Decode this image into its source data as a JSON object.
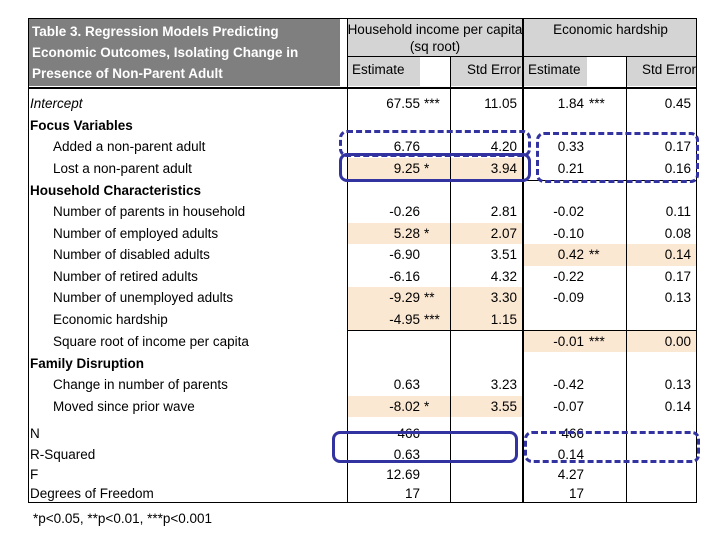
{
  "table": {
    "title": "Table 3.  Regression Models Predicting Economic Outcomes, Isolating Change in Presence of Non-Parent Adult",
    "col_groups": [
      {
        "label": "Household income per capita (sq root)"
      },
      {
        "label": "Economic hardship"
      }
    ],
    "sub_headers": {
      "estimate": "Estimate",
      "std_error": "Std Error"
    },
    "rows": [
      {
        "label": "Intercept",
        "style": "italic",
        "est1": "67.55",
        "star1": "***",
        "se1": "11.05",
        "est2": "1.84",
        "star2": "***",
        "se2": "0.45",
        "hl1": false,
        "hl2": false
      },
      {
        "label": "Focus Variables",
        "style": "bold",
        "est1": "",
        "star1": "",
        "se1": "",
        "est2": "",
        "star2": "",
        "se2": "",
        "hl1": false,
        "hl2": false
      },
      {
        "label": "Added a non-parent adult",
        "style": "indent",
        "est1": "6.76",
        "star1": "",
        "se1": "4.20",
        "est2": "0.33",
        "star2": "",
        "se2": "0.17",
        "hl1": false,
        "hl2": false
      },
      {
        "label": "Lost a non-parent adult",
        "style": "indent",
        "est1": "9.25",
        "star1": "*",
        "se1": "3.94",
        "est2": "0.21",
        "star2": "",
        "se2": "0.16",
        "hl1": true,
        "hl2": false
      },
      {
        "label": "Household Characteristics",
        "style": "bold",
        "est1": "",
        "star1": "",
        "se1": "",
        "est2": "",
        "star2": "",
        "se2": "",
        "hl1": false,
        "hl2": false
      },
      {
        "label": "Number of parents in household",
        "style": "indent",
        "est1": "-0.26",
        "star1": "",
        "se1": "2.81",
        "est2": "-0.02",
        "star2": "",
        "se2": "0.11",
        "hl1": false,
        "hl2": false
      },
      {
        "label": "Number of employed adults",
        "style": "indent",
        "est1": "5.28",
        "star1": "*",
        "se1": "2.07",
        "est2": "-0.10",
        "star2": "",
        "se2": "0.08",
        "hl1": true,
        "hl2": false
      },
      {
        "label": "Number of disabled adults",
        "style": "indent",
        "est1": "-6.90",
        "star1": "",
        "se1": "3.51",
        "est2": "0.42",
        "star2": "**",
        "se2": "0.14",
        "hl1": false,
        "hl2": true
      },
      {
        "label": "Number of retired adults",
        "style": "indent",
        "est1": "-6.16",
        "star1": "",
        "se1": "4.32",
        "est2": "-0.22",
        "star2": "",
        "se2": "0.17",
        "hl1": false,
        "hl2": false
      },
      {
        "label": "Number of unemployed adults",
        "style": "indent",
        "est1": "-9.29",
        "star1": "**",
        "se1": "3.30",
        "est2": "-0.09",
        "star2": "",
        "se2": "0.13",
        "hl1": true,
        "hl2": false
      },
      {
        "label": "Economic hardship",
        "style": "indent",
        "est1": "-4.95",
        "star1": "***",
        "se1": "1.15",
        "est2": "",
        "star2": "",
        "se2": "",
        "hl1": true,
        "hl2": false
      },
      {
        "label": "Square root of income per capita",
        "style": "indent",
        "est1": "",
        "star1": "",
        "se1": "",
        "est2": "-0.01",
        "star2": "***",
        "se2": "0.00",
        "hl1": false,
        "hl2": true
      },
      {
        "label": "Family Disruption",
        "style": "bold",
        "est1": "",
        "star1": "",
        "se1": "",
        "est2": "",
        "star2": "",
        "se2": "",
        "hl1": false,
        "hl2": false
      },
      {
        "label": "Change in number of parents",
        "style": "indent",
        "est1": "0.63",
        "star1": "",
        "se1": "3.23",
        "est2": "-0.42",
        "star2": "",
        "se2": "0.13",
        "hl1": false,
        "hl2": false
      },
      {
        "label": "Moved since prior wave",
        "style": "indent",
        "est1": "-8.02",
        "star1": "*",
        "se1": "3.55",
        "est2": "-0.07",
        "star2": "",
        "se2": "0.14",
        "hl1": true,
        "hl2": false
      },
      {
        "label": "N",
        "style": "stat",
        "est1": "466",
        "star1": "",
        "se1": "",
        "est2": "466",
        "star2": "",
        "se2": "",
        "hl1": false,
        "hl2": false
      },
      {
        "label": "R-Squared",
        "style": "stat",
        "est1": "0.63",
        "star1": "",
        "se1": "",
        "est2": "0.14",
        "star2": "",
        "se2": "",
        "hl1": false,
        "hl2": false
      },
      {
        "label": "F",
        "style": "stat",
        "est1": "12.69",
        "star1": "",
        "se1": "",
        "est2": "4.27",
        "star2": "",
        "se2": "",
        "hl1": false,
        "hl2": false
      },
      {
        "label": "Degrees of Freedom",
        "style": "stat",
        "est1": "17",
        "star1": "",
        "se1": "",
        "est2": "17",
        "star2": "",
        "se2": "",
        "hl1": false,
        "hl2": false
      }
    ],
    "annotations": [
      {
        "name": "income-added-row-box",
        "style": "dashed"
      },
      {
        "name": "income-lost-row-box",
        "style": "solid"
      },
      {
        "name": "hardship-focus-rows-box",
        "style": "dashed"
      },
      {
        "name": "income-n-rsquared-box",
        "style": "solid"
      },
      {
        "name": "hardship-n-rsquared-box",
        "style": "dashed"
      }
    ],
    "footnote": "*p<0.05, **p<0.01, ***p<0.001",
    "colors": {
      "annotation_blue": "#3232a0",
      "highlight_peach": "#fbe8d3",
      "header_gray": "#d4d4d4",
      "title_gray": "#7f7f7f"
    }
  }
}
